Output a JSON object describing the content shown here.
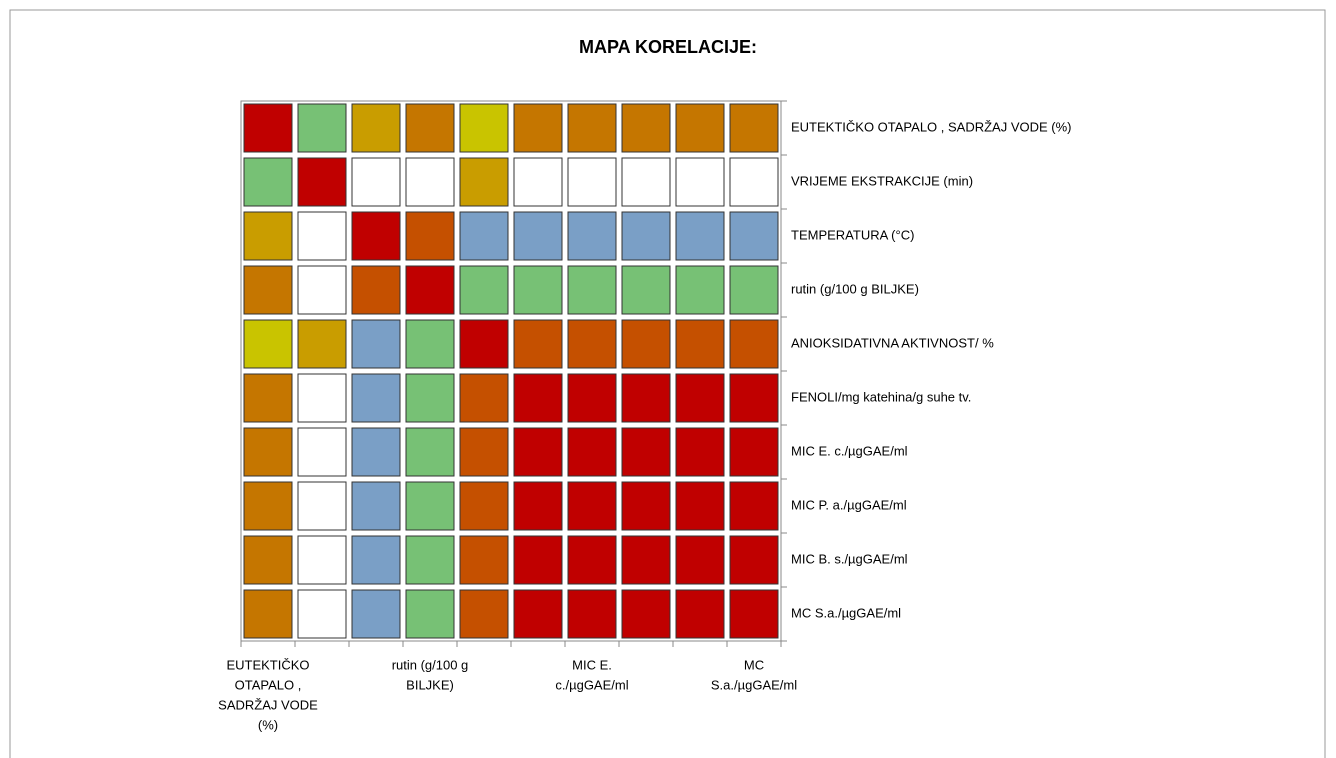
{
  "chart_data": {
    "type": "heatmap",
    "title": "MAPA KORELACIJE:",
    "row_labels": [
      "EUTEKTIČKO OTAPALO , SADRŽAJ VODE (%)",
      "VRIJEME EKSTRAKCIJE (min)",
      "TEMPERATURA (°C)",
      "rutin (g/100 g BILJKE)",
      "ANIOKSIDATIVNA AKTIVNOST/ %",
      "FENOLI/mg katehina/g suhe tv.",
      "MIC E. c./µgGAE/ml",
      "MIC P. a./µgGAE/ml",
      "MIC B. s./µgGAE/ml",
      "MC S.a./µgGAE/ml"
    ],
    "x_labels": [
      [
        "EUTEKTIČKO",
        "OTAPALO ,",
        "SADRŽAJ VODE",
        "(%)"
      ],
      null,
      null,
      [
        "rutin (g/100 g",
        "BILJKE)"
      ],
      null,
      null,
      [
        "MIC E.",
        "c./µgGAE/ml"
      ],
      null,
      null,
      [
        "MC",
        "S.a./µgGAE/ml"
      ]
    ],
    "colors": [
      [
        "#c00000",
        "#77c175",
        "#c99d00",
        "#c57600",
        "#c9c400",
        "#c57600",
        "#c57600",
        "#c57600",
        "#c57600",
        "#c57600"
      ],
      [
        "#77c175",
        "#c00000",
        "#ffffff",
        "#ffffff",
        "#c99d00",
        "#ffffff",
        "#ffffff",
        "#ffffff",
        "#ffffff",
        "#ffffff"
      ],
      [
        "#c99d00",
        "#ffffff",
        "#c00000",
        "#c55000",
        "#7a9fc6",
        "#7a9fc6",
        "#7a9fc6",
        "#7a9fc6",
        "#7a9fc6",
        "#7a9fc6"
      ],
      [
        "#c57600",
        "#ffffff",
        "#c55000",
        "#c00000",
        "#77c175",
        "#77c175",
        "#77c175",
        "#77c175",
        "#77c175",
        "#77c175"
      ],
      [
        "#c9c400",
        "#c99d00",
        "#7a9fc6",
        "#77c175",
        "#c00000",
        "#c55000",
        "#c55000",
        "#c55000",
        "#c55000",
        "#c55000"
      ],
      [
        "#c57600",
        "#ffffff",
        "#7a9fc6",
        "#77c175",
        "#c55000",
        "#c00000",
        "#c00000",
        "#c00000",
        "#c00000",
        "#c00000"
      ],
      [
        "#c57600",
        "#ffffff",
        "#7a9fc6",
        "#77c175",
        "#c55000",
        "#c00000",
        "#c00000",
        "#c00000",
        "#c00000",
        "#c00000"
      ],
      [
        "#c57600",
        "#ffffff",
        "#7a9fc6",
        "#77c175",
        "#c55000",
        "#c00000",
        "#c00000",
        "#c00000",
        "#c00000",
        "#c00000"
      ],
      [
        "#c57600",
        "#ffffff",
        "#7a9fc6",
        "#77c175",
        "#c55000",
        "#c00000",
        "#c00000",
        "#c00000",
        "#c00000",
        "#c00000"
      ],
      [
        "#c57600",
        "#ffffff",
        "#7a9fc6",
        "#77c175",
        "#c55000",
        "#c00000",
        "#c00000",
        "#c00000",
        "#c00000",
        "#c00000"
      ]
    ]
  }
}
